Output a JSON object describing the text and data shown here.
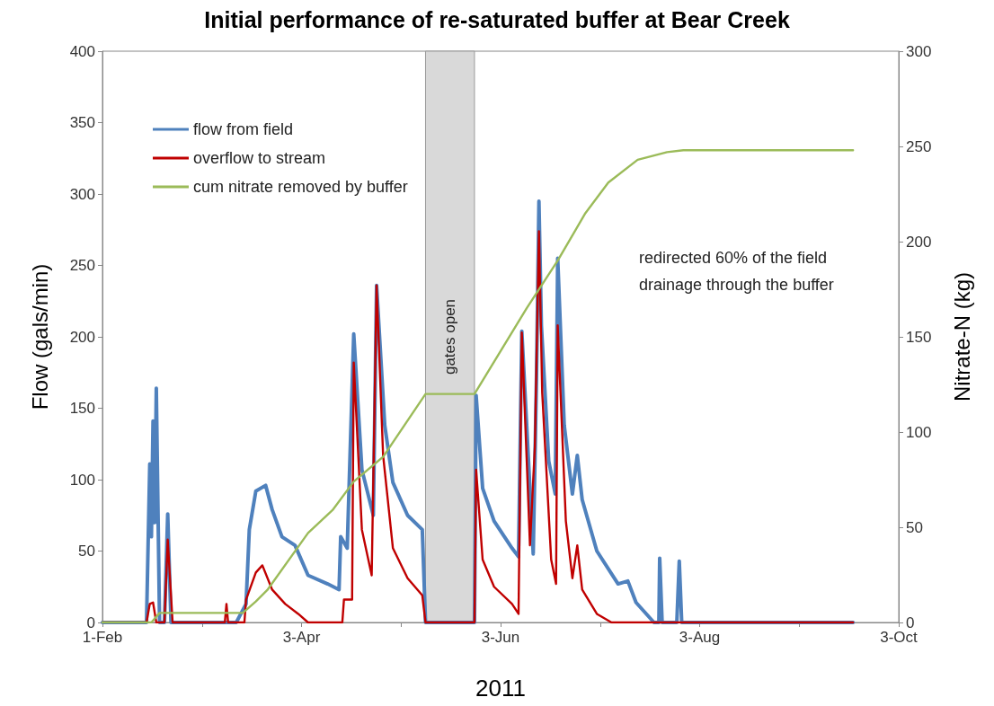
{
  "chart_data": {
    "type": "line",
    "title": "Initial performance of re-saturated buffer at Bear Creek",
    "xlabel": "2011",
    "ylabel": "Flow (gals/min)",
    "y2label": "Nitrate-N (kg)",
    "annotations": [
      "redirected 60% of the field drainage through the buffer"
    ],
    "xlim": [
      "2011-02-01",
      "2011-10-03"
    ],
    "xticks": [
      {
        "value": "2011-02-01",
        "label": "1-Feb"
      },
      {
        "value": "2011-03-03T12:00",
        "label": null
      },
      {
        "value": "2011-04-03",
        "label": "3-Apr"
      },
      {
        "value": "2011-05-03T12:00",
        "label": null
      },
      {
        "value": "2011-06-03",
        "label": "3-Jun"
      },
      {
        "value": "2011-07-03T12:00",
        "label": null
      },
      {
        "value": "2011-08-03",
        "label": "3-Aug"
      },
      {
        "value": "2011-09-02T12:00",
        "label": null
      },
      {
        "value": "2011-10-03",
        "label": "3-Oct"
      }
    ],
    "ylim": [
      0,
      400
    ],
    "yticks": [
      0,
      50,
      100,
      150,
      200,
      250,
      300,
      350,
      400
    ],
    "y2lim": [
      0,
      300
    ],
    "y2ticks": [
      0,
      50,
      100,
      150,
      200,
      250,
      300
    ],
    "grid": false,
    "legend": "top left",
    "marker": "none",
    "line_style": "solid",
    "bands": [
      {
        "axis": "x",
        "from": "2011-05-11",
        "to": "2011-05-26",
        "label": "gates open",
        "color": "#d9d9d9"
      }
    ],
    "series": [
      {
        "name": "flow from field",
        "color": "#4f81bd",
        "x": [
          "2011-02-01",
          "2011-02-14T12:00",
          "2011-02-15T12:00",
          "2011-02-16",
          "2011-02-16T12:00",
          "2011-02-17",
          "2011-02-17T12:00",
          "2011-02-18T12:00",
          "2011-02-20",
          "2011-02-21",
          "2011-02-22",
          "2011-03-14",
          "2011-03-17",
          "2011-03-18",
          "2011-03-20",
          "2011-03-23",
          "2011-03-25",
          "2011-03-28",
          "2011-04-01",
          "2011-04-05",
          "2011-04-11",
          "2011-04-14T12:00",
          "2011-04-15",
          "2011-04-17",
          "2011-04-19",
          "2011-04-21T12:00",
          "2011-04-25",
          "2011-04-26",
          "2011-04-28T12:00",
          "2011-05-01",
          "2011-05-05T12:00",
          "2011-05-10",
          "2011-05-11",
          "2011-05-26",
          "2011-05-26T12:00",
          "2011-05-28T12:00",
          "2011-06-01",
          "2011-06-06T12:00",
          "2011-06-08T12:00",
          "2011-06-09T12:00",
          "2011-06-11",
          "2011-06-13",
          "2011-06-14",
          "2011-06-14T18:00",
          "2011-06-15T12:00",
          "2011-06-17T18:00",
          "2011-06-19T18:00",
          "2011-06-20T12:00",
          "2011-06-22T12:00",
          "2011-06-25",
          "2011-06-26T12:00",
          "2011-06-28",
          "2011-07-02T12:00",
          "2011-07-09",
          "2011-07-12",
          "2011-07-14T12:00",
          "2011-07-20",
          "2011-07-21T12:00",
          "2011-07-21T18:00",
          "2011-07-22T12:00",
          "2011-07-27",
          "2011-07-27T18:00",
          "2011-07-28T12:00",
          "2011-09-19"
        ],
        "values": [
          0,
          0,
          111,
          60,
          141,
          70,
          164,
          0,
          0,
          76,
          0,
          0,
          13,
          65,
          92,
          96,
          79,
          60,
          54,
          33,
          27,
          23,
          60,
          52,
          202,
          107,
          75,
          236,
          138,
          98,
          75,
          65,
          0,
          0,
          159,
          94,
          71,
          52,
          46,
          204,
          138,
          48,
          172,
          295,
          208,
          113,
          90,
          255,
          138,
          90,
          117,
          86,
          50,
          27,
          29,
          14,
          0,
          0,
          45,
          0,
          0,
          43,
          0,
          0
        ]
      },
      {
        "name": "overflow to stream",
        "color": "#c00000",
        "x": [
          "2011-02-01",
          "2011-02-14T12:00",
          "2011-02-15T12:00",
          "2011-02-16T12:00",
          "2011-02-17T12:00",
          "2011-02-20",
          "2011-02-21",
          "2011-02-22T12:00",
          "2011-03-10T12:00",
          "2011-03-11",
          "2011-03-11T12:00",
          "2011-03-16T12:00",
          "2011-03-17",
          "2011-03-20",
          "2011-03-22",
          "2011-03-25",
          "2011-03-29",
          "2011-04-02",
          "2011-04-05",
          "2011-04-15T12:00",
          "2011-04-16",
          "2011-04-18T12:00",
          "2011-04-19",
          "2011-04-21T12:00",
          "2011-04-24T12:00",
          "2011-04-26",
          "2011-04-28",
          "2011-05-01",
          "2011-05-05T12:00",
          "2011-05-10",
          "2011-05-11",
          "2011-05-26",
          "2011-05-26T12:00",
          "2011-05-28T12:00",
          "2011-06-01",
          "2011-06-06T12:00",
          "2011-06-08T12:00",
          "2011-06-09T12:00",
          "2011-06-12",
          "2011-06-13T12:00",
          "2011-06-14T18:00",
          "2011-06-15T18:00",
          "2011-06-18T12:00",
          "2011-06-20",
          "2011-06-20T12:00",
          "2011-06-23",
          "2011-06-25",
          "2011-06-26T12:00",
          "2011-06-28",
          "2011-07-02T12:00",
          "2011-07-07",
          "2011-09-19"
        ],
        "values": [
          0,
          0,
          13,
          14,
          0,
          0,
          58,
          0,
          0,
          13,
          0,
          0,
          16,
          35,
          40,
          23,
          13,
          6,
          0,
          0,
          16,
          16,
          182,
          65,
          33,
          236,
          117,
          52,
          31,
          19,
          0,
          0,
          107,
          44,
          25,
          13,
          6,
          203,
          54,
          123,
          274,
          161,
          44,
          27,
          208,
          71,
          31,
          54,
          23,
          6,
          0,
          0
        ]
      },
      {
        "name": "cum nitrate removed by buffer",
        "color": "#9bbb59",
        "axis": "y2",
        "x": [
          "2011-02-01",
          "2011-02-16",
          "2011-02-18T12:00",
          "2011-03-16",
          "2011-03-20",
          "2011-03-23T12:00",
          "2011-04-05",
          "2011-04-12T12:00",
          "2011-04-19",
          "2011-04-28",
          "2011-05-11",
          "2011-05-26",
          "2011-06-11",
          "2011-06-20T12:00",
          "2011-06-29",
          "2011-07-06",
          "2011-07-15",
          "2011-07-24",
          "2011-07-29",
          "2011-09-19"
        ],
        "values": [
          0,
          0,
          5,
          5,
          11,
          17,
          47,
          59,
          74,
          87,
          120,
          120,
          165,
          190,
          215,
          231,
          243,
          247,
          248,
          248
        ]
      }
    ]
  }
}
